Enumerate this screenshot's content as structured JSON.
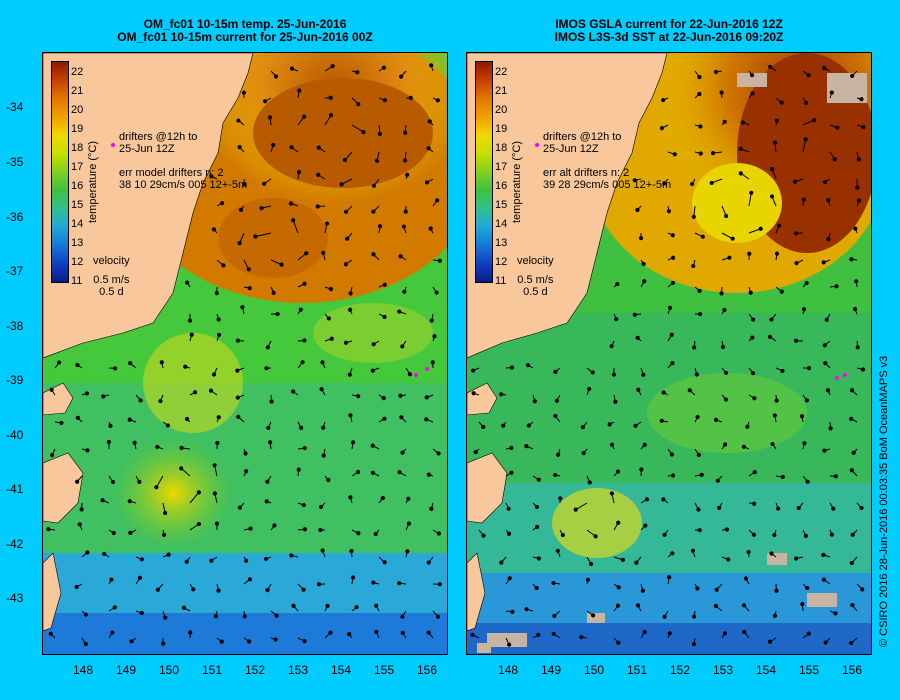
{
  "left_panel": {
    "title_line1": "OM_fc01 10-15m temp. 25-Jun-2016",
    "title_line2": "OM_fc01 10-15m current for 25-Jun-2016 00Z",
    "drifters_line1": "drifters @12h to",
    "drifters_line2": "25-Jun 12Z",
    "err_line1": "err model drifters n: 2",
    "err_line2": "38 10 29cm/s 005 12+-5m",
    "velocity_label": "velocity",
    "velocity_scale": "0.5 m/s",
    "velocity_time": "0.5 d"
  },
  "right_panel": {
    "title_line1": "IMOS GSLA current for 22-Jun-2016 12Z",
    "title_line2": "IMOS L3S-3d SST at 22-Jun-2016 09:20Z",
    "drifters_line1": "drifters @12h to",
    "drifters_line2": "25-Jun 12Z",
    "err_line1": "err alt drifters n: 2",
    "err_line2": "39 28 29cm/s 005 12+-5m",
    "velocity_label": "velocity",
    "velocity_scale": "0.5 m/s",
    "velocity_time": "0.5 d"
  },
  "colorbar": {
    "title": "temperature (°C)",
    "ticks": [
      "22",
      "21",
      "20",
      "19",
      "18",
      "17",
      "16",
      "15",
      "14",
      "13",
      "12",
      "11"
    ]
  },
  "x_ticks": [
    "148",
    "149",
    "150",
    "151",
    "152",
    "153",
    "154",
    "155",
    "156"
  ],
  "y_ticks": [
    "-34",
    "-35",
    "-36",
    "-37",
    "-38",
    "-39",
    "-40",
    "-41",
    "-42",
    "-43"
  ],
  "credit": "© CSIRO 2016   28-Jun-2016 00:03:35 BoM OceanMAPS v3",
  "colors": {
    "background": "#00ccff",
    "land": "#f8c89c",
    "cold": "#0a1a8c",
    "warm": "#8c1a00"
  }
}
